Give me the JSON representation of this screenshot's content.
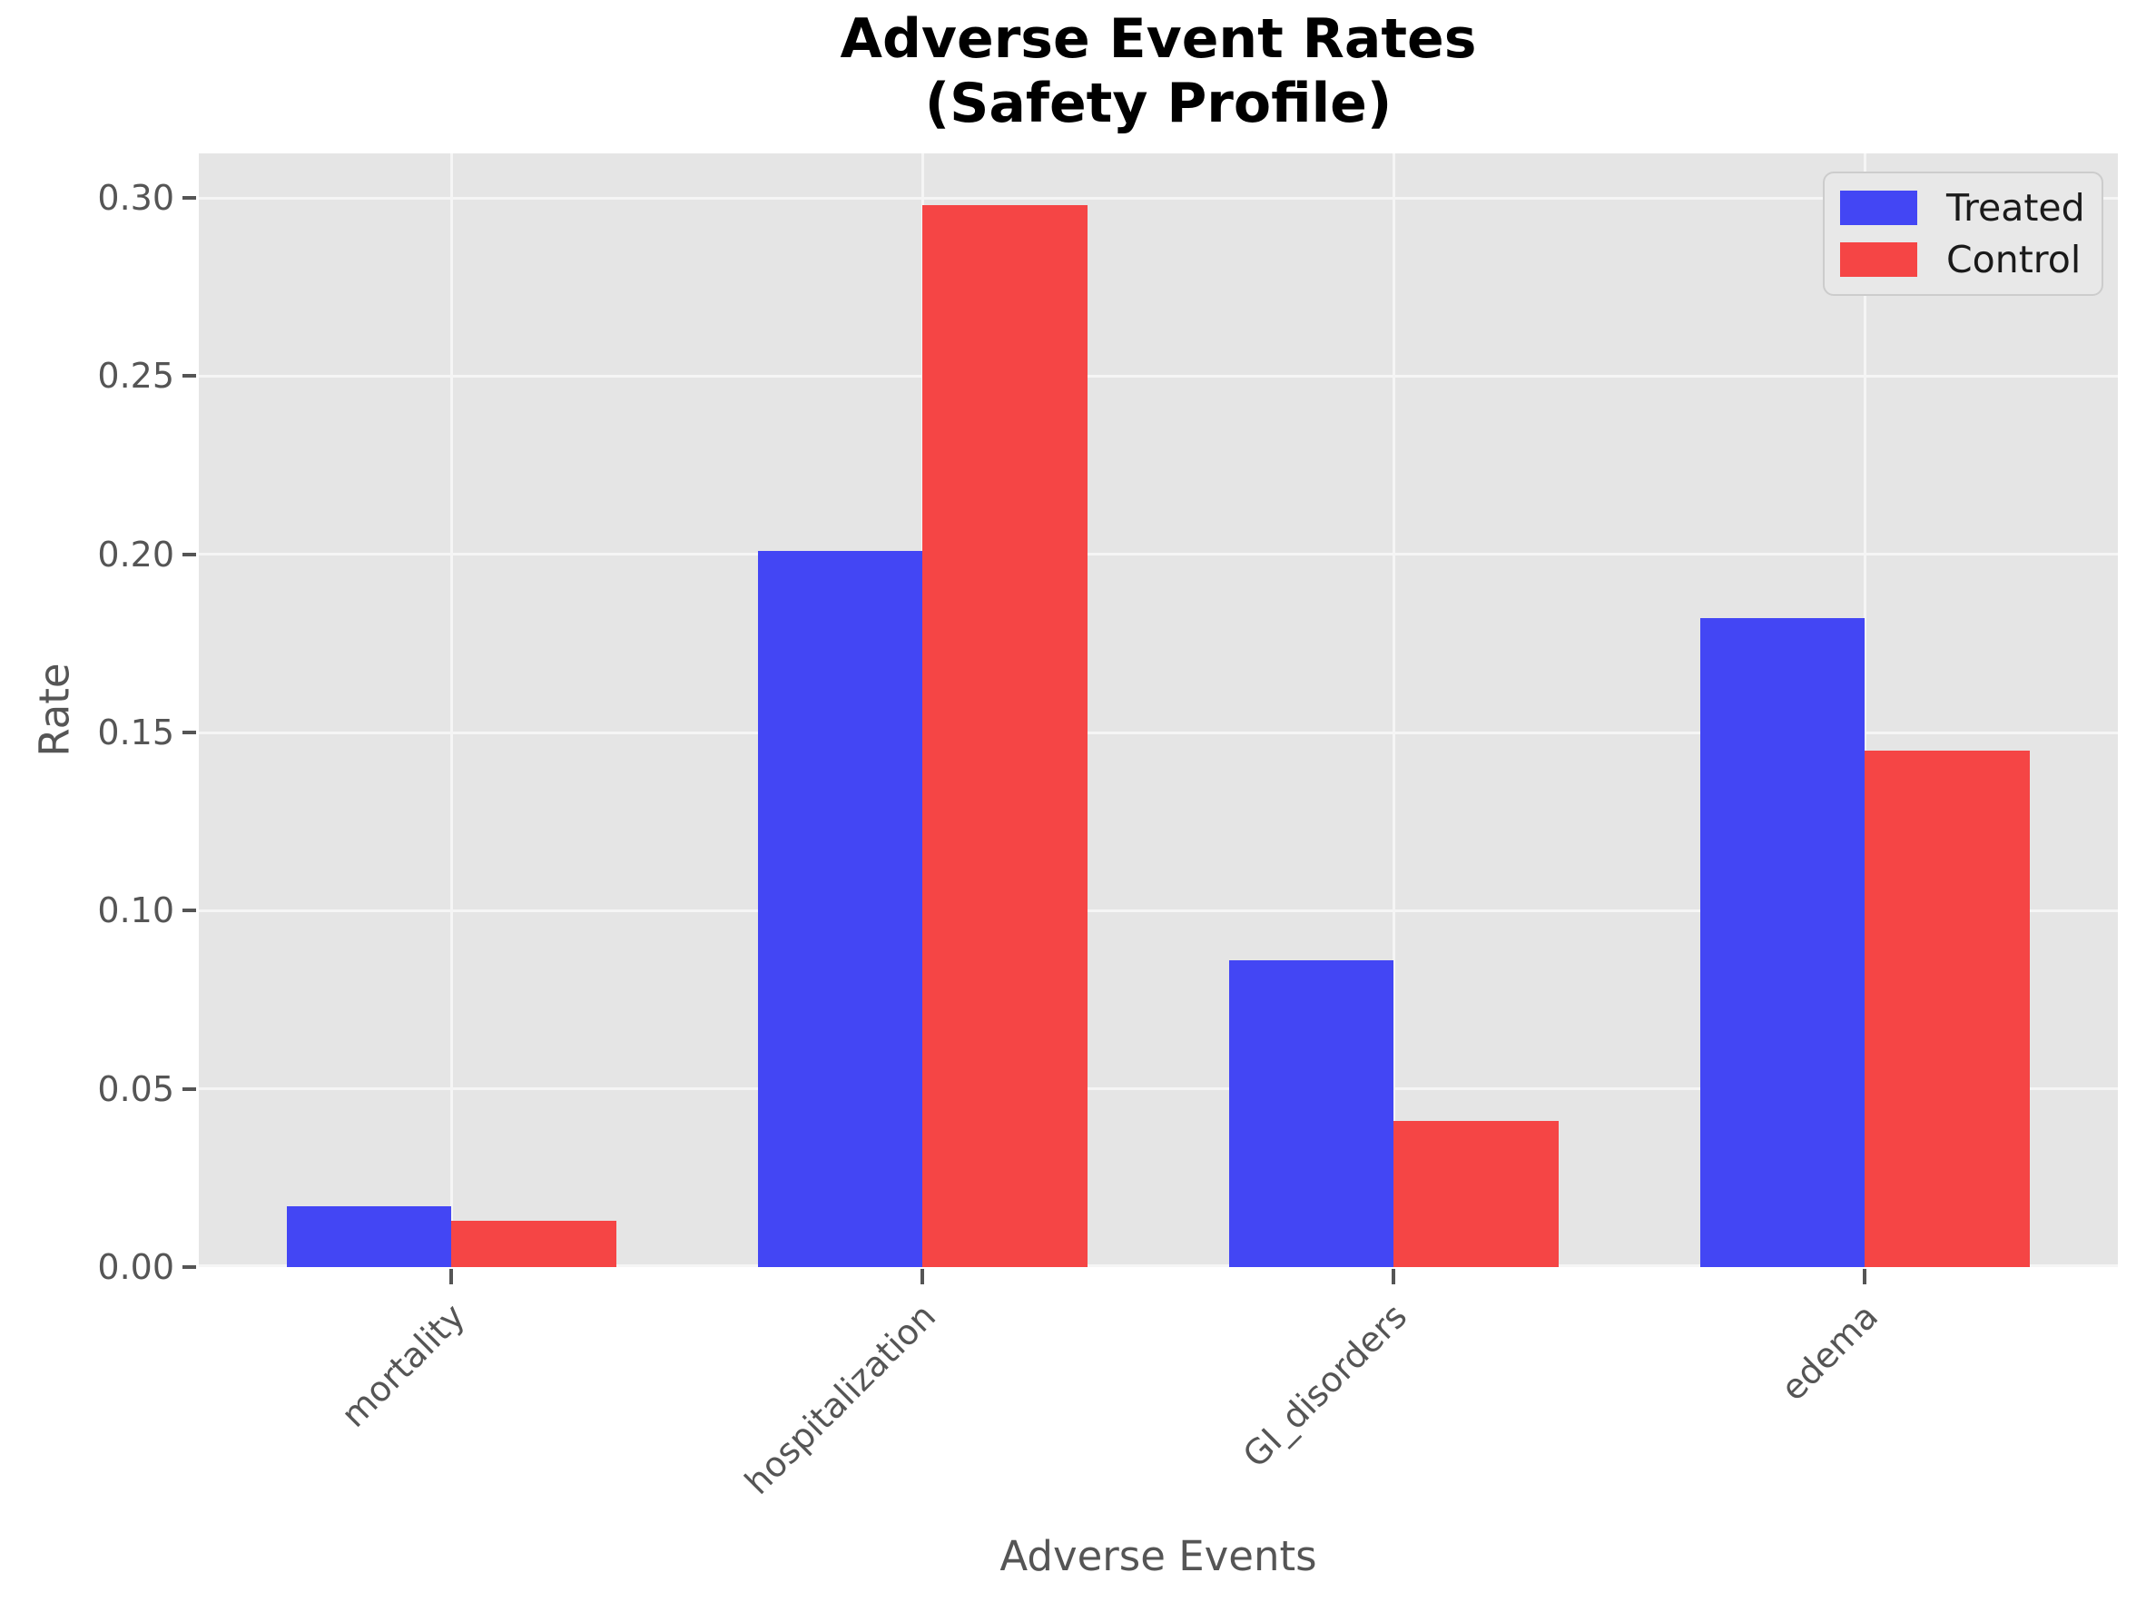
{
  "chart_data": {
    "type": "bar",
    "title": "Adverse Event Rates",
    "subtitle": "(Safety Profile)",
    "xlabel": "Adverse Events",
    "ylabel": "Rate",
    "categories": [
      "mortality",
      "hospitalization",
      "GI_disorders",
      "edema"
    ],
    "series": [
      {
        "name": "Treated",
        "color": "#4346f4",
        "values": [
          0.017,
          0.201,
          0.086,
          0.182
        ]
      },
      {
        "name": "Control",
        "color": "#f54545",
        "values": [
          0.013,
          0.298,
          0.041,
          0.145
        ]
      }
    ],
    "yticks": [
      "0.00",
      "0.05",
      "0.10",
      "0.15",
      "0.20",
      "0.25",
      "0.30"
    ],
    "ylim": [
      0,
      0.3125
    ],
    "grid": true,
    "legend_position": "upper right",
    "colors": {
      "plot_background": "#e5e5e5",
      "grid": "#f5f5f5",
      "tick_text": "#555555",
      "title_text": "#000000",
      "legend_text": "#1a1a1a",
      "legend_background": "#e8e8e8",
      "legend_border": "#cccccc"
    }
  }
}
